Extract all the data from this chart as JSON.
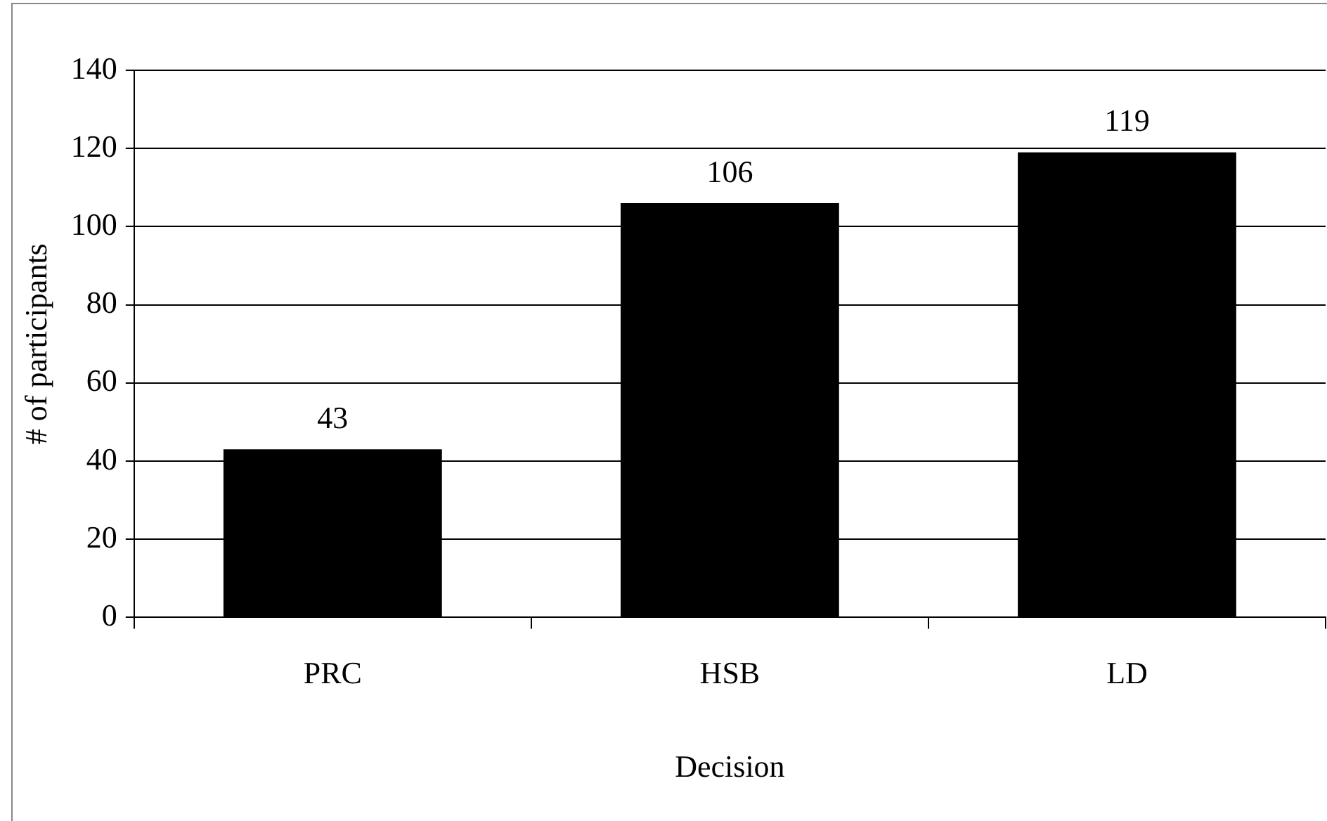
{
  "chart_data": {
    "type": "bar",
    "xlabel": "Decision",
    "ylabel": "# of participants",
    "categories": [
      "PRC",
      "HSB",
      "LD"
    ],
    "values": [
      43,
      106,
      119
    ],
    "color": "#000000",
    "ylim": [
      0,
      140
    ],
    "yticks": [
      0,
      20,
      40,
      60,
      80,
      100,
      120,
      140
    ],
    "grid": "y",
    "data_labels": true
  }
}
